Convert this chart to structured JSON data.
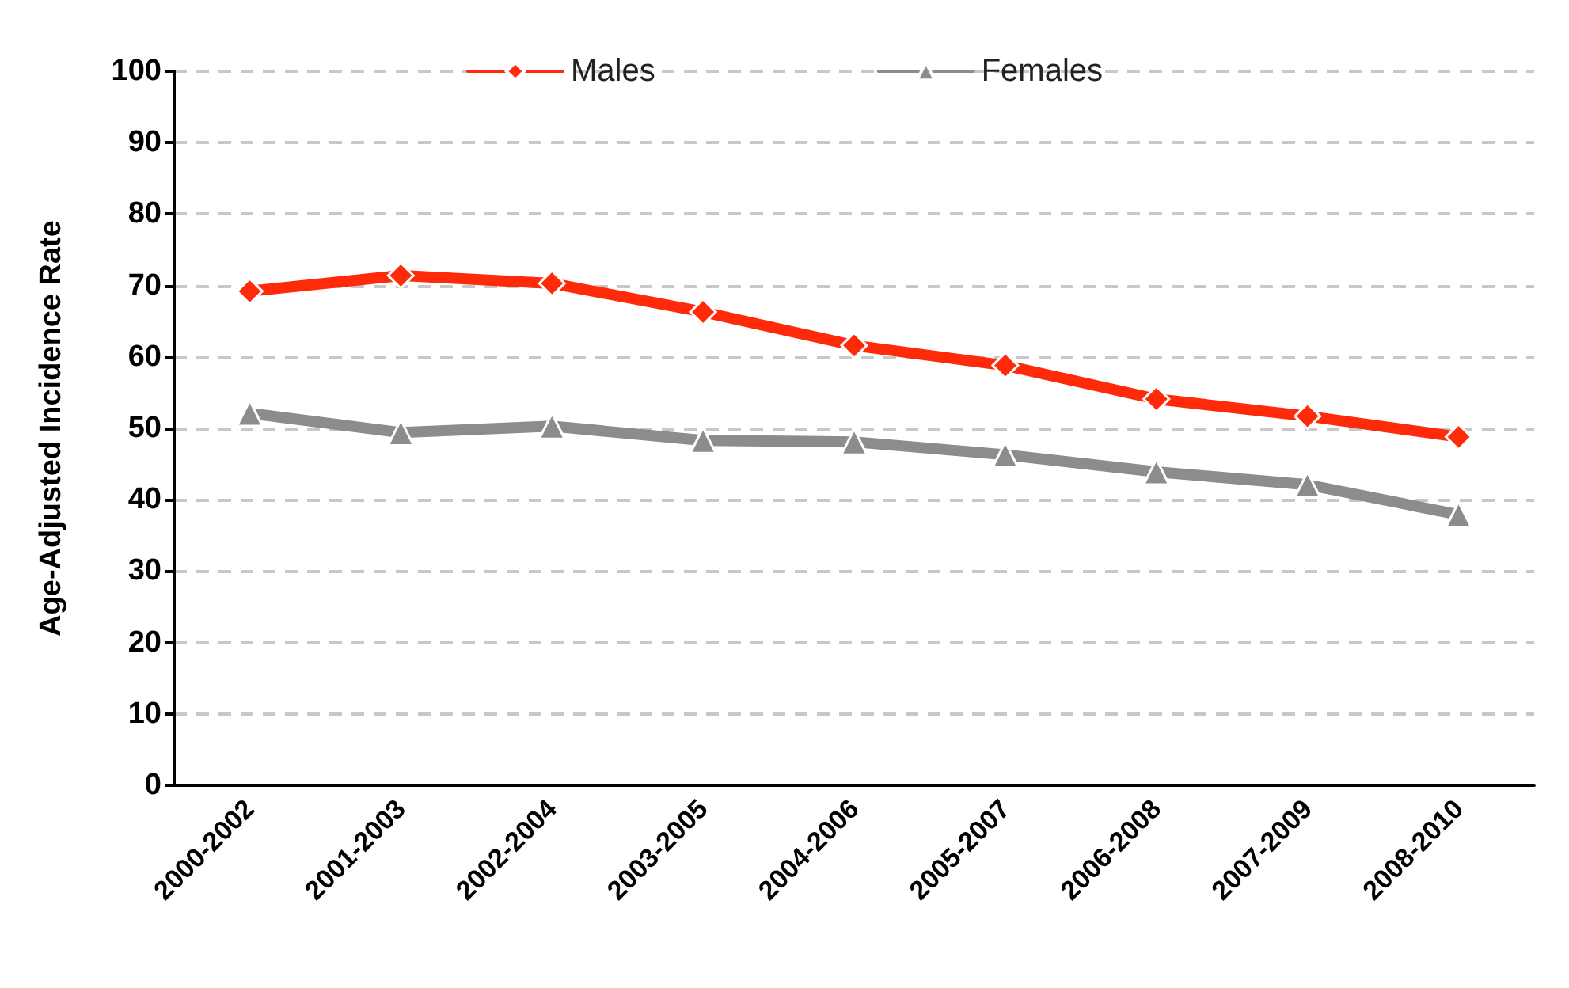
{
  "chart_data": {
    "type": "line",
    "ylabel": "Age-Adjusted Incidence Rate",
    "categories": [
      "2000-2002",
      "2001-2003",
      "2002-2004",
      "2003-2005",
      "2004-2006",
      "2005-2007",
      "2006-2008",
      "2007-2009",
      "2008-2010"
    ],
    "series": [
      {
        "name": "Males",
        "color": "#ff2a0a",
        "marker": "diamond",
        "values": [
          69.2,
          71.4,
          70.3,
          66.3,
          61.6,
          58.8,
          54.1,
          51.7,
          48.8
        ]
      },
      {
        "name": "Females",
        "color": "#8c8c8c",
        "marker": "triangle",
        "values": [
          52.1,
          49.4,
          50.3,
          48.3,
          48.1,
          46.3,
          43.9,
          42.1,
          37.9
        ]
      }
    ],
    "ylim": [
      0,
      100
    ],
    "yticks": [
      0,
      10,
      20,
      30,
      40,
      50,
      60,
      70,
      80,
      90,
      100
    ],
    "grid": "y",
    "legend": "top",
    "line_style": "solid"
  }
}
